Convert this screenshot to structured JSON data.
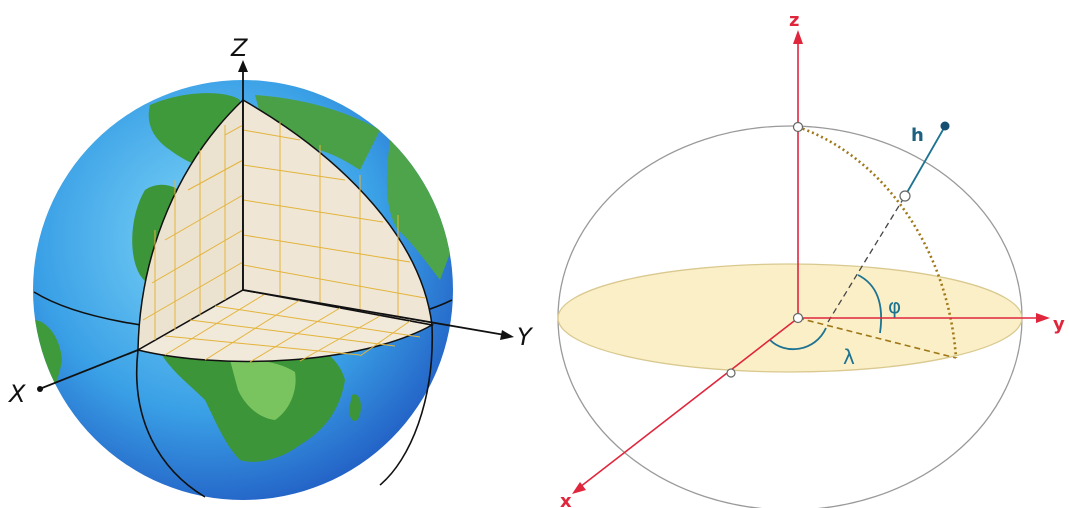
{
  "left_diagram": {
    "axes": {
      "z": "Z",
      "y": "Y",
      "x": "X"
    },
    "colors": {
      "ocean_light": "#5fc3f0",
      "ocean_dark": "#1d59c8",
      "land": "#3e9a3a",
      "land_light": "#8ad06a",
      "cutaway_fill": "#efe6d6",
      "grid_line": "#e3b43a",
      "axis": "#111111"
    }
  },
  "right_diagram": {
    "axes": {
      "z": "z",
      "y": "y",
      "x": "x"
    },
    "labels": {
      "height": "h",
      "latitude": "φ",
      "longitude": "λ"
    },
    "colors": {
      "axis": "#e0263c",
      "equator_fill": "#fbefc8",
      "equator_stroke": "#d9c98f",
      "ellipsoid_stroke": "#999999",
      "dotted_arc": "#a07818",
      "normal_line": "#1d7391"
    }
  }
}
